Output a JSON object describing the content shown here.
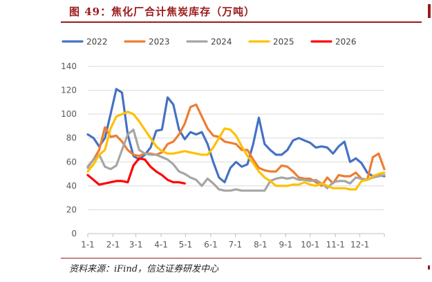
{
  "figure": {
    "title": "图 49：焦化厂合计焦炭库存（万吨）",
    "source": "资料来源：iFind，信达证券研发中心"
  },
  "chart_data": {
    "type": "line",
    "title": "",
    "xlabel": "",
    "ylabel": "",
    "ylim": [
      0,
      140
    ],
    "yticks": [
      0,
      20,
      40,
      60,
      80,
      100,
      120,
      140
    ],
    "xlim": [
      0,
      52
    ],
    "xticks": [
      {
        "label": "1-1",
        "week": 0
      },
      {
        "label": "2-1",
        "week": 4.43
      },
      {
        "label": "3-1",
        "week": 8.43
      },
      {
        "label": "4-1",
        "week": 12.86
      },
      {
        "label": "5-1",
        "week": 17.14
      },
      {
        "label": "6-1",
        "week": 21.57
      },
      {
        "label": "7-1",
        "week": 25.86
      },
      {
        "label": "8-1",
        "week": 30.29
      },
      {
        "label": "9-1",
        "week": 34.71
      },
      {
        "label": "10-1",
        "week": 39
      },
      {
        "label": "11-1",
        "week": 43.43
      },
      {
        "label": "12-1",
        "week": 47.71
      }
    ],
    "grid": true,
    "legend_position": "top",
    "series": [
      {
        "name": "2022",
        "color": "#4472C4",
        "x": [
          0,
          1,
          2,
          3,
          4,
          5,
          6,
          7,
          8,
          9,
          10,
          11,
          12,
          13,
          14,
          15,
          16,
          17,
          18,
          19,
          20,
          21,
          22,
          23,
          24,
          25,
          26,
          27,
          28,
          29,
          30,
          31,
          32,
          33,
          34,
          35,
          36,
          37,
          38,
          39,
          40,
          41,
          42,
          43,
          44,
          45,
          46,
          47,
          48,
          49,
          50,
          51,
          52
        ],
        "values": [
          83,
          80,
          73,
          80,
          100,
          121,
          118,
          83,
          65,
          62,
          66,
          72,
          86,
          87,
          114,
          108,
          87,
          79,
          85,
          83,
          85,
          75,
          60,
          47,
          43,
          55,
          60,
          56,
          58,
          75,
          97,
          75,
          70,
          66,
          66,
          70,
          78,
          80,
          78,
          76,
          72,
          73,
          72,
          67,
          73,
          77,
          60,
          63,
          59,
          51,
          48,
          49,
          48
        ]
      },
      {
        "name": "2023",
        "color": "#ED7D31",
        "x": [
          0,
          1,
          2,
          3,
          4,
          5,
          6,
          7,
          8,
          9,
          10,
          11,
          12,
          13,
          14,
          15,
          16,
          17,
          18,
          19,
          20,
          21,
          22,
          23,
          24,
          25,
          26,
          27,
          28,
          29,
          30,
          31,
          32,
          33,
          34,
          35,
          36,
          37,
          38,
          39,
          40,
          41,
          42,
          43,
          44,
          45,
          46,
          47,
          48,
          49,
          50,
          51,
          52
        ],
        "values": [
          56,
          62,
          70,
          89,
          81,
          82,
          77,
          70,
          66,
          65,
          67,
          67,
          66,
          68,
          75,
          77,
          83,
          92,
          106,
          108,
          98,
          88,
          82,
          81,
          77,
          76,
          75,
          70,
          70,
          62,
          55,
          53,
          52,
          52,
          57,
          56,
          52,
          47,
          46,
          46,
          43,
          40,
          47,
          42,
          49,
          48,
          48,
          51,
          46,
          45,
          64,
          67,
          54
        ]
      },
      {
        "name": "2024",
        "color": "#A5A5A5",
        "x": [
          0,
          1,
          2,
          3,
          4,
          5,
          6,
          7,
          8,
          9,
          10,
          11,
          12,
          13,
          14,
          15,
          16,
          17,
          18,
          19,
          20,
          21,
          22,
          23,
          24,
          25,
          26,
          27,
          28,
          29,
          30,
          31,
          32,
          33,
          34,
          35,
          36,
          37,
          38,
          39,
          40,
          41,
          42,
          43,
          44,
          45,
          46,
          47,
          48,
          49,
          50,
          51,
          52
        ],
        "values": [
          55,
          62,
          66,
          56,
          54,
          57,
          70,
          83,
          87,
          70,
          67,
          66,
          66,
          64,
          62,
          58,
          52,
          50,
          47,
          45,
          40,
          46,
          42,
          37,
          36,
          36,
          37,
          36,
          36,
          36,
          36,
          36,
          44,
          46,
          47,
          46,
          47,
          45,
          45,
          44,
          45,
          42,
          38,
          43,
          44,
          44,
          42,
          47,
          46,
          45,
          47,
          48,
          49
        ]
      },
      {
        "name": "2025",
        "color": "#FFC000",
        "x": [
          0,
          1,
          2,
          3,
          4,
          5,
          6,
          7,
          8,
          9,
          10,
          11,
          12,
          13,
          14,
          15,
          16,
          17,
          18,
          19,
          20,
          21,
          22,
          23,
          24,
          25,
          26,
          27,
          28,
          29,
          30,
          31,
          32,
          33,
          34,
          35,
          36,
          37,
          38,
          39,
          40,
          41,
          42,
          43,
          44,
          45,
          46,
          47,
          48,
          49,
          50,
          51,
          52
        ],
        "values": [
          52,
          58,
          66,
          70,
          88,
          98,
          100,
          102,
          100,
          94,
          87,
          80,
          73,
          69,
          67,
          67,
          68,
          69,
          68,
          67,
          66,
          66,
          72,
          80,
          88,
          87,
          82,
          73,
          65,
          59,
          52,
          47,
          44,
          40,
          40,
          40,
          41,
          41,
          43,
          41,
          40,
          42,
          40,
          38,
          38,
          38,
          37,
          37,
          44,
          45,
          48,
          50,
          51
        ]
      },
      {
        "name": "2026",
        "color": "#FF0000",
        "x": [
          0,
          1,
          2,
          3,
          4,
          5,
          6,
          7,
          8,
          9,
          10,
          11,
          12,
          13,
          14,
          15,
          16,
          17
        ],
        "values": [
          49,
          45,
          41,
          42,
          43,
          44,
          44,
          43,
          57,
          63,
          62,
          56,
          52,
          49,
          45,
          43,
          43,
          42
        ]
      }
    ]
  }
}
